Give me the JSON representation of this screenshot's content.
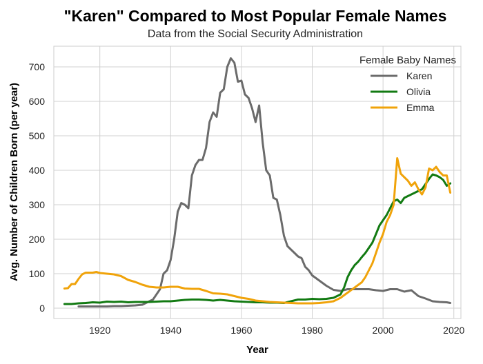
{
  "chart_data": {
    "type": "line",
    "title": "\"Karen\" Compared to Most Popular Female Names",
    "subtitle": "Data from the Social Security Administration",
    "xlabel": "Year",
    "ylabel": "Avg. Number of Children Born (per year)",
    "xlim": [
      1907,
      2022
    ],
    "ylim": [
      -30,
      760
    ],
    "xticks": [
      1920,
      1940,
      1960,
      1980,
      2000,
      2020
    ],
    "yticks": [
      0,
      100,
      200,
      300,
      400,
      500,
      600,
      700
    ],
    "grid": true,
    "legend": {
      "title": "Female Baby Names",
      "position": "top-right"
    },
    "series": [
      {
        "name": "Karen",
        "color": "#6b6b6b",
        "x": [
          1914,
          1916,
          1918,
          1920,
          1922,
          1924,
          1926,
          1928,
          1930,
          1932,
          1934,
          1935,
          1936,
          1937,
          1938,
          1939,
          1940,
          1941,
          1942,
          1943,
          1944,
          1945,
          1946,
          1947,
          1948,
          1949,
          1950,
          1951,
          1952,
          1953,
          1954,
          1955,
          1956,
          1957,
          1958,
          1959,
          1960,
          1961,
          1962,
          1963,
          1964,
          1965,
          1966,
          1967,
          1968,
          1969,
          1970,
          1971,
          1972,
          1973,
          1974,
          1975,
          1976,
          1977,
          1978,
          1979,
          1980,
          1982,
          1984,
          1986,
          1988,
          1990,
          1992,
          1994,
          1996,
          1998,
          2000,
          2002,
          2004,
          2006,
          2008,
          2010,
          2012,
          2014,
          2016,
          2018,
          2019
        ],
        "y": [
          5,
          5,
          5,
          5,
          5,
          6,
          6,
          7,
          8,
          10,
          20,
          25,
          40,
          55,
          100,
          110,
          140,
          200,
          280,
          305,
          300,
          290,
          385,
          415,
          430,
          430,
          465,
          540,
          568,
          555,
          625,
          635,
          700,
          725,
          712,
          657,
          660,
          620,
          610,
          580,
          540,
          588,
          480,
          400,
          385,
          320,
          315,
          270,
          210,
          180,
          170,
          160,
          150,
          145,
          120,
          110,
          95,
          80,
          65,
          53,
          50,
          55,
          55,
          55,
          55,
          52,
          50,
          55,
          55,
          48,
          52,
          35,
          28,
          20,
          18,
          17,
          15
        ]
      },
      {
        "name": "Olivia",
        "color": "#127a12",
        "x": [
          1910,
          1912,
          1914,
          1916,
          1918,
          1920,
          1922,
          1924,
          1926,
          1928,
          1930,
          1932,
          1934,
          1936,
          1938,
          1940,
          1942,
          1944,
          1946,
          1948,
          1950,
          1952,
          1954,
          1956,
          1958,
          1960,
          1962,
          1964,
          1966,
          1968,
          1970,
          1972,
          1974,
          1976,
          1978,
          1980,
          1982,
          1984,
          1986,
          1988,
          1989,
          1990,
          1991,
          1992,
          1993,
          1994,
          1995,
          1996,
          1997,
          1998,
          1999,
          2000,
          2001,
          2002,
          2003,
          2004,
          2005,
          2006,
          2007,
          2008,
          2009,
          2010,
          2011,
          2012,
          2013,
          2014,
          2015,
          2016,
          2017,
          2018,
          2019
        ],
        "y": [
          12,
          12,
          14,
          15,
          17,
          16,
          19,
          18,
          19,
          17,
          18,
          18,
          18,
          19,
          20,
          20,
          22,
          24,
          25,
          25,
          24,
          22,
          24,
          22,
          20,
          19,
          18,
          17,
          17,
          16,
          16,
          15,
          20,
          25,
          25,
          27,
          26,
          27,
          30,
          40,
          60,
          90,
          110,
          125,
          135,
          148,
          160,
          175,
          190,
          215,
          240,
          255,
          270,
          290,
          310,
          315,
          305,
          320,
          325,
          330,
          335,
          340,
          345,
          360,
          375,
          388,
          385,
          380,
          372,
          355,
          362
        ]
      },
      {
        "name": "Emma",
        "color": "#f0a30a",
        "x": [
          1910,
          1911,
          1912,
          1913,
          1914,
          1915,
          1916,
          1917,
          1918,
          1919,
          1920,
          1922,
          1924,
          1926,
          1928,
          1930,
          1932,
          1934,
          1936,
          1938,
          1940,
          1942,
          1944,
          1946,
          1948,
          1950,
          1952,
          1954,
          1956,
          1958,
          1960,
          1962,
          1964,
          1966,
          1968,
          1970,
          1972,
          1974,
          1976,
          1978,
          1980,
          1982,
          1984,
          1986,
          1988,
          1990,
          1992,
          1994,
          1995,
          1996,
          1997,
          1998,
          1999,
          2000,
          2001,
          2002,
          2003,
          2004,
          2005,
          2006,
          2007,
          2008,
          2009,
          2010,
          2011,
          2012,
          2013,
          2014,
          2015,
          2016,
          2017,
          2018,
          2019
        ],
        "y": [
          57,
          58,
          70,
          70,
          85,
          98,
          103,
          103,
          103,
          105,
          102,
          100,
          98,
          93,
          82,
          76,
          68,
          62,
          60,
          60,
          62,
          62,
          57,
          56,
          56,
          50,
          43,
          42,
          40,
          35,
          30,
          27,
          22,
          20,
          18,
          17,
          16,
          15,
          14,
          14,
          14,
          15,
          17,
          20,
          30,
          45,
          60,
          75,
          90,
          110,
          130,
          160,
          190,
          215,
          250,
          270,
          300,
          435,
          390,
          380,
          370,
          355,
          365,
          345,
          330,
          350,
          405,
          400,
          410,
          395,
          385,
          385,
          335
        ]
      }
    ]
  }
}
